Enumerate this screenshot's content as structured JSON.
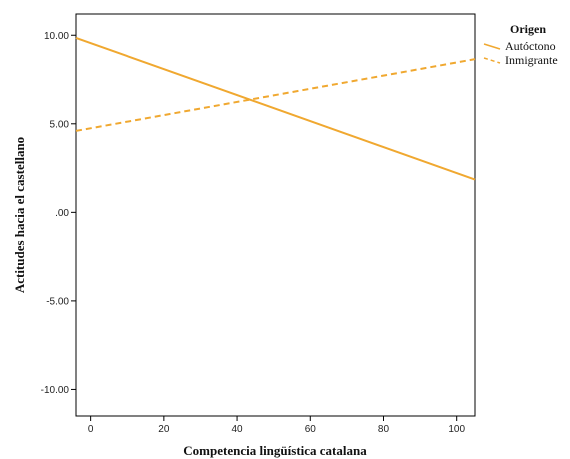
{
  "chart_data": {
    "type": "line",
    "xlabel": "Competencia lingüística catalana",
    "ylabel": "Actitudes hacia el castellano",
    "xlim": [
      -4,
      105
    ],
    "ylim": [
      -11.5,
      11.2
    ],
    "xticks": [
      0,
      20,
      40,
      60,
      80,
      100
    ],
    "xtick_labels": [
      "0",
      "20",
      "40",
      "60",
      "80",
      "100"
    ],
    "yticks": [
      10,
      5,
      0,
      -5,
      -10
    ],
    "ytick_labels": [
      "10.00",
      "5.00",
      ".00",
      "-5.00",
      "-10.00"
    ],
    "grid": false,
    "legend_position": "right",
    "legend": {
      "title": "Origen"
    },
    "series": [
      {
        "name": "Autóctono",
        "style": "solid",
        "color": "#f0a830",
        "x": [
          -4,
          105
        ],
        "y": [
          9.85,
          1.85
        ]
      },
      {
        "name": "Inmigrante",
        "style": "dashed",
        "color": "#f0a830",
        "x": [
          -4,
          105
        ],
        "y": [
          4.6,
          8.65
        ]
      }
    ]
  }
}
